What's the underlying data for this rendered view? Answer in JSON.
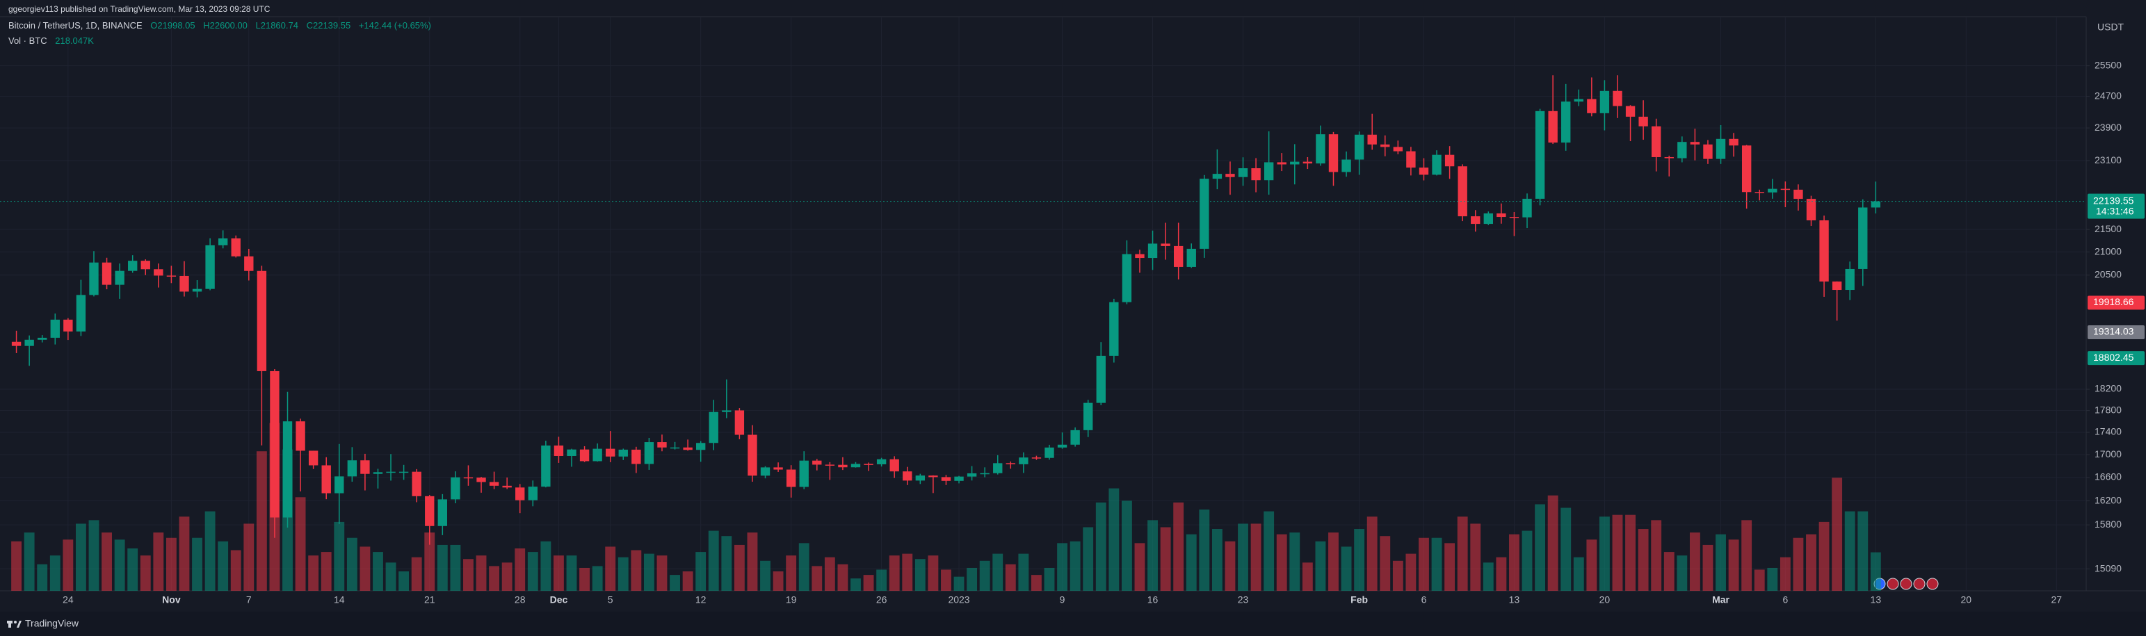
{
  "header": {
    "published": "ggeorgiev113 published on TradingView.com, Mar 13, 2023 09:28 UTC",
    "footer_brand": "TradingView"
  },
  "chart_data": {
    "type": "candlestick",
    "symbol": "Bitcoin / TetherUS, 1D, BINANCE",
    "ohlc_text": [
      "O21998.05",
      "H22600.00",
      "L21860.74",
      "C22139.55"
    ],
    "change_text": "+142.44 (+0.65%)",
    "volume_title": "Vol · BTC",
    "volume_text": "218.047K",
    "currency": "USDT",
    "countdown": "14:31:46",
    "up_color": "#089981",
    "down_color": "#f23645",
    "log_scale": true,
    "grid": true,
    "xlim": [
      -1.27,
      160.3
    ],
    "xticks": [
      {
        "value": 4,
        "label": "24"
      },
      {
        "value": 12,
        "label": "Nov"
      },
      {
        "value": 18,
        "label": "7"
      },
      {
        "value": 25,
        "label": "14"
      },
      {
        "value": 32,
        "label": "21"
      },
      {
        "value": 39,
        "label": "28"
      },
      {
        "value": 42,
        "label": "Dec"
      },
      {
        "value": 46,
        "label": "5"
      },
      {
        "value": 53,
        "label": "12"
      },
      {
        "value": 60,
        "label": "19"
      },
      {
        "value": 67,
        "label": "26"
      },
      {
        "value": 73,
        "label": "2023"
      },
      {
        "value": 81,
        "label": "9"
      },
      {
        "value": 88,
        "label": "16"
      },
      {
        "value": 95,
        "label": "23"
      },
      {
        "value": 104,
        "label": "Feb"
      },
      {
        "value": 109,
        "label": "6"
      },
      {
        "value": 116,
        "label": "13"
      },
      {
        "value": 123,
        "label": "20"
      },
      {
        "value": 132,
        "label": "Mar"
      },
      {
        "value": 137,
        "label": "6"
      },
      {
        "value": 144,
        "label": "13"
      },
      {
        "value": 151,
        "label": "20"
      },
      {
        "value": 158,
        "label": "27"
      }
    ],
    "ylim": [
      14750,
      26840
    ],
    "yticks": [
      25500,
      24700,
      23900,
      23100,
      21500,
      21000,
      20500,
      18200,
      17800,
      17400,
      17000,
      16600,
      16200,
      15800,
      15090
    ],
    "volume_ylim": [
      0,
      3250000
    ],
    "price_labels": [
      {
        "value": 19918.66,
        "label": "19918.66",
        "color": "#f23645"
      },
      {
        "value": 19314.03,
        "label": "19314.03",
        "color": "#787b86"
      },
      {
        "value": 18802.45,
        "label": "18802.45",
        "color": "#089981"
      }
    ],
    "open": [
      19123,
      19041,
      19164,
      19204,
      19570,
      19330,
      20080,
      20771,
      20295,
      20591,
      20809,
      20627,
      20490,
      20483,
      20151,
      20207,
      21148,
      21300,
      20905,
      20590,
      18547,
      15922,
      17601,
      17070,
      16812,
      16330,
      16619,
      16900,
      16663,
      16692,
      16700,
      16700,
      16280,
      15781,
      16226,
      16603,
      16598,
      16522,
      16458,
      16428,
      16212,
      16442,
      17163,
      16977,
      17092,
      16885,
      17105,
      16967,
      17089,
      16836,
      17224,
      17128,
      17128,
      17085,
      17209,
      17774,
      17803,
      17356,
      16632,
      16776,
      16738,
      16438,
      16895,
      16824,
      16821,
      16778,
      16837,
      16830,
      16919,
      16706,
      16547,
      16634,
      16607,
      16542,
      16616,
      16672,
      16675,
      16850,
      16831,
      16950,
      16943,
      17127,
      17178,
      17440,
      17943,
      18846,
      19930,
      20954,
      20871,
      21185,
      21132,
      20677,
      21071,
      22667,
      22783,
      22707,
      22917,
      22633,
      23060,
      23009,
      23074,
      23031,
      23743,
      22827,
      23125,
      23733,
      23492,
      23431,
      23326,
      22932,
      22762,
      23240,
      22963,
      21797,
      21625,
      21862,
      21783,
      21773,
      22199,
      24324,
      23538,
      24566,
      24631,
      24271,
      24841,
      24452,
      24182,
      23941,
      23185,
      23158,
      23554,
      23492,
      23141,
      23629,
      23467,
      22355,
      22346,
      22430,
      22410,
      22197,
      21705,
      20363,
      20187,
      20632,
      21998.05
    ],
    "high": [
      19345,
      19250,
      19257,
      19695,
      19601,
      20400,
      21020,
      20875,
      20750,
      20930,
      20840,
      20750,
      20700,
      20800,
      20393,
      21302,
      21480,
      21365,
      21070,
      20700,
      18587,
      18150,
      17650,
      17070,
      16955,
      17190,
      17134,
      17015,
      16751,
      17011,
      16820,
      16746,
      16300,
      16315,
      16707,
      16812,
      16611,
      16701,
      16600,
      16487,
      16548,
      17249,
      17320,
      17105,
      17150,
      17200,
      17424,
      17107,
      17140,
      17300,
      17360,
      17227,
      17270,
      17242,
      18000,
      18387,
      17846,
      17531,
      16796,
      16863,
      16815,
      17061,
      16925,
      16868,
      16955,
      16869,
      16861,
      16944,
      16972,
      16785,
      16664,
      16638,
      16644,
      16628,
      16799,
      16777,
      16991,
      16879,
      17041,
      16981,
      17176,
      17398,
      17490,
      18000,
      19117,
      20000,
      21258,
      21050,
      21474,
      21650,
      21650,
      21188,
      22755,
      23371,
      23078,
      23180,
      23160,
      23816,
      23284,
      23500,
      23185,
      23960,
      23800,
      23320,
      23812,
      24255,
      23715,
      23587,
      23433,
      23158,
      23350,
      23452,
      23011,
      21938,
      21906,
      22090,
      21895,
      22322,
      24380,
      25250,
      25021,
      24877,
      25192,
      25121,
      25250,
      24476,
      24600,
      24132,
      23219,
      23689,
      23881,
      23600,
      23971,
      23777,
      23478,
      22410,
      22662,
      22603,
      22534,
      22268,
      21812,
      20367,
      20792,
      22185,
      22600
    ],
    "low": [
      18900,
      18650,
      19111,
      19070,
      19160,
      19240,
      20050,
      20200,
      20000,
      20550,
      20500,
      20237,
      20330,
      20048,
      20031,
      20180,
      21080,
      20880,
      20386,
      17166,
      15588,
      15754,
      16361,
      16748,
      16229,
      15815,
      16527,
      16378,
      16410,
      16546,
      16560,
      16178,
      15476,
      15632,
      16160,
      16458,
      16339,
      16400,
      16401,
      15995,
      16110,
      16430,
      16855,
      16787,
      16870,
      16878,
      16867,
      16905,
      16678,
      16733,
      17060,
      17092,
      17071,
      16874,
      17081,
      17660,
      17276,
      16527,
      16585,
      16697,
      16256,
      16398,
      16723,
      16559,
      16731,
      16772,
      16713,
      16791,
      16592,
      16470,
      16488,
      16333,
      16470,
      16499,
      16548,
      16605,
      16652,
      16753,
      16679,
      16908,
      16911,
      17104,
      17143,
      17315,
      17900,
      18714,
      19888,
      20551,
      20611,
      20833,
      20407,
      20655,
      20873,
      22422,
      22292,
      22500,
      22350,
      22293,
      22850,
      22534,
      22900,
      22976,
      22500,
      22714,
      22760,
      23363,
      23204,
      23253,
      22745,
      22628,
      22745,
      22665,
      21688,
      21451,
      21599,
      21630,
      21351,
      21532,
      22047,
      23505,
      23339,
      24450,
      24192,
      23840,
      24148,
      23574,
      23608,
      22841,
      22722,
      23059,
      23106,
      23020,
      23020,
      23195,
      21971,
      22160,
      22200,
      22005,
      21927,
      21580,
      20042,
      19549,
      19973,
      20271,
      21860.74
    ],
    "close": [
      19041,
      19164,
      19204,
      19570,
      19330,
      20080,
      20771,
      20295,
      20591,
      20809,
      20627,
      20490,
      20483,
      20151,
      20207,
      21148,
      21300,
      20905,
      20590,
      18547,
      15922,
      17601,
      17070,
      16812,
      16330,
      16619,
      16900,
      16663,
      16692,
      16700,
      16700,
      16280,
      15781,
      16226,
      16603,
      16598,
      16522,
      16458,
      16428,
      16212,
      16442,
      17163,
      16977,
      17092,
      16885,
      17105,
      16967,
      17089,
      16836,
      17224,
      17128,
      17128,
      17085,
      17209,
      17774,
      17803,
      17356,
      16632,
      16776,
      16738,
      16438,
      16895,
      16824,
      16821,
      16778,
      16837,
      16830,
      16919,
      16706,
      16547,
      16634,
      16607,
      16542,
      16616,
      16672,
      16675,
      16850,
      16831,
      16950,
      16943,
      17127,
      17178,
      17440,
      17943,
      18846,
      19930,
      20954,
      20871,
      21185,
      21132,
      20677,
      21071,
      22667,
      22783,
      22707,
      22917,
      22633,
      23060,
      23009,
      23074,
      23031,
      23743,
      22827,
      23125,
      23733,
      23492,
      23431,
      23326,
      22932,
      22762,
      23240,
      22963,
      21797,
      21625,
      21862,
      21783,
      21773,
      22199,
      24324,
      23538,
      24566,
      24631,
      24271,
      24841,
      24452,
      24182,
      23941,
      23185,
      23158,
      23554,
      23492,
      23141,
      23629,
      23467,
      22355,
      22346,
      22430,
      22410,
      22197,
      21705,
      20363,
      20187,
      20632,
      21998.05,
      22139.55
    ],
    "volume": [
      280000,
      330000,
      150000,
      200000,
      290000,
      380000,
      400000,
      330000,
      290000,
      240000,
      200000,
      330000,
      300000,
      420000,
      300000,
      450000,
      280000,
      230000,
      380000,
      790000,
      950000,
      800000,
      530000,
      200000,
      220000,
      390000,
      300000,
      250000,
      220000,
      160000,
      110000,
      190000,
      330000,
      260000,
      260000,
      180000,
      200000,
      140000,
      160000,
      240000,
      220000,
      280000,
      200000,
      200000,
      130000,
      140000,
      250000,
      190000,
      230000,
      210000,
      200000,
      90000,
      110000,
      220000,
      340000,
      310000,
      260000,
      330000,
      170000,
      110000,
      200000,
      270000,
      140000,
      190000,
      150000,
      70000,
      90000,
      120000,
      200000,
      210000,
      180000,
      200000,
      120000,
      80000,
      130000,
      170000,
      210000,
      150000,
      210000,
      90000,
      130000,
      270000,
      280000,
      360000,
      500000,
      580000,
      510000,
      270000,
      400000,
      360000,
      500000,
      320000,
      460000,
      350000,
      280000,
      380000,
      380000,
      450000,
      320000,
      330000,
      160000,
      280000,
      330000,
      250000,
      350000,
      420000,
      310000,
      170000,
      210000,
      300000,
      300000,
      270000,
      420000,
      380000,
      160000,
      190000,
      320000,
      340000,
      490000,
      540000,
      470000,
      190000,
      290000,
      420000,
      430000,
      430000,
      350000,
      400000,
      220000,
      200000,
      330000,
      260000,
      320000,
      290000,
      400000,
      120000,
      130000,
      190000,
      300000,
      320000,
      390000,
      640000,
      450000,
      450000,
      218047
    ]
  }
}
